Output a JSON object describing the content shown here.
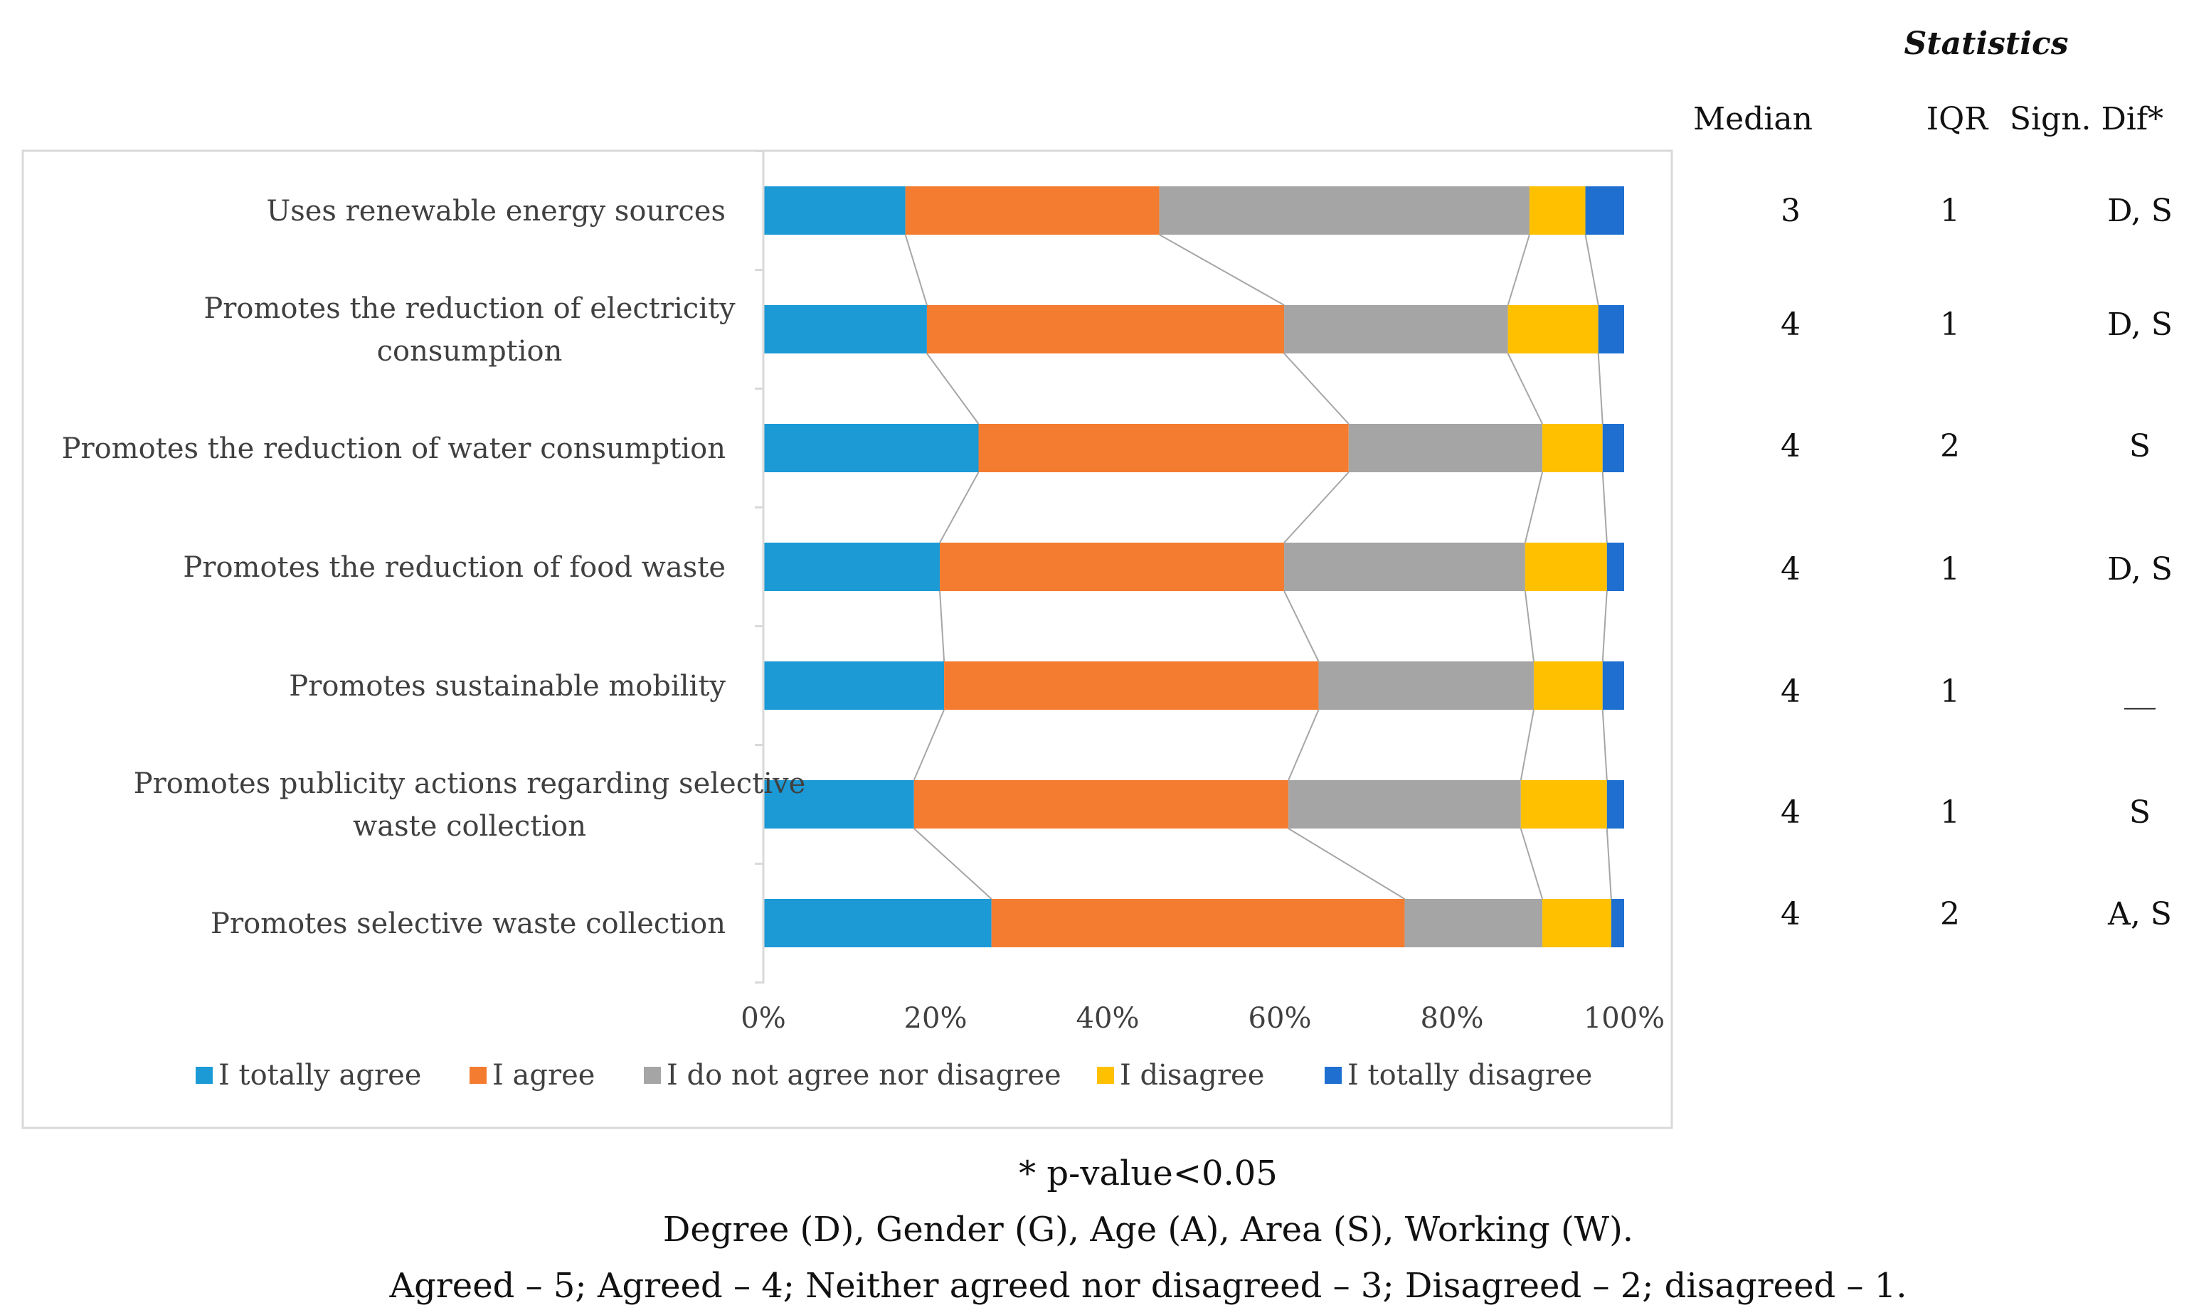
{
  "chart_data": {
    "type": "bar",
    "subtype": "stacked-horizontal-100",
    "categories": [
      "Uses renewable energy sources",
      "Promotes the reduction of electricity consumption",
      "Promotes the reduction of water consumption",
      "Promotes the reduction of food waste",
      "Promotes sustainable mobility",
      "Promotes publicity actions regarding selective waste collection",
      "Promotes selective waste collection"
    ],
    "category_lines": [
      [
        "Uses renewable energy sources"
      ],
      [
        "Promotes the reduction of electricity",
        "consumption"
      ],
      [
        "Promotes the reduction of water consumption"
      ],
      [
        "Promotes the reduction of food waste"
      ],
      [
        "Promotes sustainable mobility"
      ],
      [
        "Promotes publicity actions regarding selective",
        "waste collection"
      ],
      [
        "Promotes selective waste collection"
      ]
    ],
    "series": [
      {
        "name": "I totally agree",
        "color": "#1b9ad6",
        "values": [
          16.5,
          19,
          25,
          20.5,
          21,
          17.5,
          26.5
        ]
      },
      {
        "name": "I agree",
        "color": "#f47c30",
        "values": [
          29.5,
          41.5,
          43,
          40,
          43.5,
          43.5,
          48
        ]
      },
      {
        "name": "I do not agree nor disagree",
        "color": "#a5a5a5",
        "values": [
          43,
          26,
          22.5,
          28,
          25,
          27,
          16
        ]
      },
      {
        "name": "I disagree",
        "color": "#ffc000",
        "values": [
          6.5,
          10.5,
          7,
          9.5,
          8,
          10,
          8
        ]
      },
      {
        "name": "I totally disagree",
        "color": "#1e6fd0",
        "values": [
          4.5,
          3,
          2.5,
          2,
          2.5,
          2,
          1.5
        ]
      }
    ],
    "x_ticks": [
      "0%",
      "20%",
      "40%",
      "60%",
      "80%",
      "100%"
    ],
    "xlim": [
      0,
      100
    ],
    "legend_position": "bottom",
    "title": "",
    "xlabel": "",
    "ylabel": ""
  },
  "statistics": {
    "title": "Statistics",
    "headers": {
      "median": "Median",
      "iqr": "IQR",
      "sign_dif": "Sign. Dif*"
    },
    "rows": [
      {
        "median": "3",
        "iqr": "1",
        "sign_dif": "D, S"
      },
      {
        "median": "4",
        "iqr": "1",
        "sign_dif": "D, S"
      },
      {
        "median": "4",
        "iqr": "2",
        "sign_dif": "S"
      },
      {
        "median": "4",
        "iqr": "1",
        "sign_dif": "D, S"
      },
      {
        "median": "4",
        "iqr": "1",
        "sign_dif": "__"
      },
      {
        "median": "4",
        "iqr": "1",
        "sign_dif": "S"
      },
      {
        "median": "4",
        "iqr": "2",
        "sign_dif": "A, S"
      }
    ]
  },
  "footnotes": {
    "pvalue": "* p-value<0.05",
    "codes": "Degree (D), Gender (G), Age (A), Area (S), Working (W).",
    "scale": "Agreed – 5; Agreed – 4; Neither agreed nor disagreed – 3; Disagreed – 2; disagreed – 1."
  }
}
